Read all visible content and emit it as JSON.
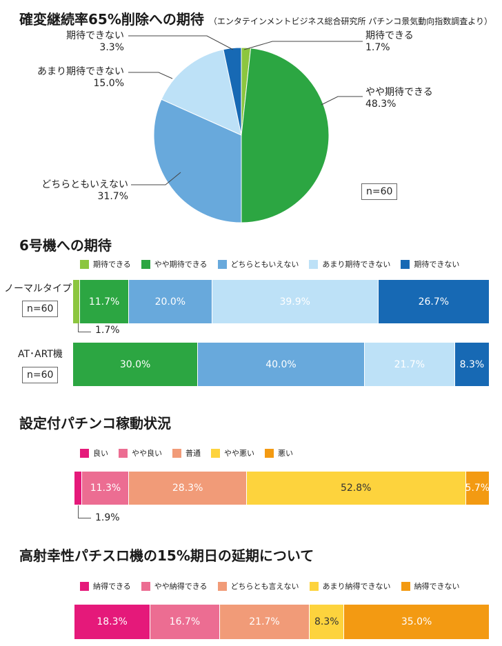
{
  "chart_data": [
    {
      "type": "pie",
      "title": "確変継続率65%削除への期待",
      "subtitle": "（エンタテインメントビジネス総合研究所 パチンコ景気動向指数調査より）",
      "n_label": "n=60",
      "slices": [
        {
          "label": "期待できる",
          "value": 1.7,
          "value_label": "1.7%",
          "color": "#8cc63f"
        },
        {
          "label": "やや期待できる",
          "value": 48.3,
          "value_label": "48.3%",
          "color": "#2ca642"
        },
        {
          "label": "どちらともいえない",
          "value": 31.7,
          "value_label": "31.7%",
          "color": "#68a9dc"
        },
        {
          "label": "あまり期待できない",
          "value": 15.0,
          "value_label": "15.0%",
          "color": "#bde1f7"
        },
        {
          "label": "期待できない",
          "value": 3.3,
          "value_label": "3.3%",
          "color": "#1769b4"
        }
      ]
    },
    {
      "type": "bar",
      "orientation": "horizontal-stacked",
      "title": "6号機への期待",
      "legend": [
        "期待できる",
        "やや期待できる",
        "どちらともいえない",
        "あまり期待できない",
        "期待できない"
      ],
      "colors": [
        "#8cc63f",
        "#2ca642",
        "#68a9dc",
        "#bde1f7",
        "#1769b4"
      ],
      "rows": [
        {
          "label": "ノーマルタイプ",
          "n_label": "n=60",
          "values": [
            1.7,
            11.7,
            20.0,
            39.9,
            26.7
          ],
          "labels": [
            "",
            "11.7%",
            "20.0%",
            "39.9%",
            "26.7%"
          ],
          "callout": "1.7%"
        },
        {
          "label": "AT･ART機",
          "n_label": "n=60",
          "values": [
            0,
            30.0,
            40.0,
            21.7,
            8.3
          ],
          "labels": [
            "",
            "30.0%",
            "40.0%",
            "21.7%",
            "8.3%"
          ],
          "callout": ""
        }
      ]
    },
    {
      "type": "bar",
      "orientation": "horizontal-stacked",
      "title": "設定付パチンコ稼動状況",
      "legend": [
        "良い",
        "やや良い",
        "普通",
        "やや悪い",
        "悪い"
      ],
      "colors": [
        "#e5197a",
        "#ec6d92",
        "#f19b78",
        "#fdd33d",
        "#f39a12"
      ],
      "rows": [
        {
          "values": [
            1.9,
            11.3,
            28.3,
            52.8,
            5.7
          ],
          "labels": [
            "",
            "11.3%",
            "28.3%",
            "52.8%",
            "5.7%"
          ],
          "callout": "1.9%"
        }
      ]
    },
    {
      "type": "bar",
      "orientation": "horizontal-stacked",
      "title": "高射幸性パチスロ機の15%期日の延期について",
      "legend": [
        "納得できる",
        "やや納得できる",
        "どちらとも言えない",
        "あまり納得できない",
        "納得できない"
      ],
      "colors": [
        "#e5197a",
        "#ec6d92",
        "#f19b78",
        "#fdd33d",
        "#f39a12"
      ],
      "rows": [
        {
          "values": [
            18.3,
            16.7,
            21.7,
            8.3,
            35.0
          ],
          "labels": [
            "18.3%",
            "16.7%",
            "21.7%",
            "8.3%",
            "35.0%"
          ],
          "callout": ""
        }
      ]
    }
  ]
}
